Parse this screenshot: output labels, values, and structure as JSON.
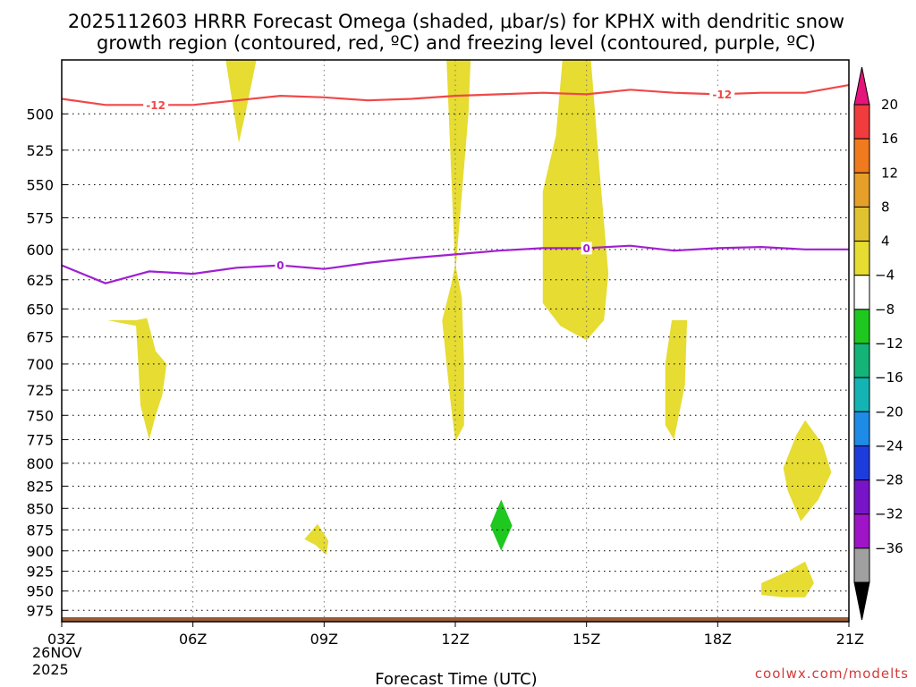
{
  "title_line1": "2025112603 HRRR Forecast Omega (shaded, μbar/s) for KPHX with dendritic snow",
  "title_line2": "growth region (contoured, red, ºC) and freezing level (contoured, purple, ºC)",
  "credit": "coolwx.com/modelts",
  "chart_data": {
    "type": "heatmap",
    "title": "2025112603 HRRR Forecast Omega (shaded, μbar/s) for KPHX with dendritic snow growth region (contoured, red, ºC) and freezing level (contoured, purple, ºC)",
    "xlabel": "Forecast Time (UTC)",
    "ylabel": "",
    "xlim": [
      3,
      21
    ],
    "ylim": [
      990,
      465
    ],
    "x_ticks": [
      {
        "x": 3,
        "label": "03Z"
      },
      {
        "x": 6,
        "label": "06Z"
      },
      {
        "x": 9,
        "label": "09Z"
      },
      {
        "x": 12,
        "label": "12Z"
      },
      {
        "x": 15,
        "label": "15Z"
      },
      {
        "x": 18,
        "label": "18Z"
      },
      {
        "x": 21,
        "label": "21Z"
      }
    ],
    "x_date_line1": "26NOV",
    "x_date_line2": "2025",
    "y_ticks": [
      500,
      525,
      550,
      575,
      600,
      625,
      650,
      675,
      700,
      725,
      750,
      775,
      800,
      825,
      850,
      875,
      900,
      925,
      950,
      975
    ],
    "grid": true,
    "colorbar": {
      "boundaries": [
        20,
        16,
        12,
        8,
        4,
        -4,
        -8,
        -12,
        -16,
        -20,
        -24,
        -28,
        -32,
        -36
      ],
      "colors": [
        "#f03c3c",
        "#f07a1e",
        "#e6a02a",
        "#e0c330",
        "#e6dc32",
        "#ffffff",
        "#1ec81e",
        "#14b478",
        "#14b4b4",
        "#1e8ce6",
        "#1e3cdc",
        "#7814c8",
        "#a014c8",
        "#a0a0a0"
      ],
      "top_extend_color": "#e6147a",
      "bottom_extend_color": "#000000"
    },
    "shaded_regions": [
      {
        "value_range": [
          4,
          8
        ],
        "color": "#e6dc32",
        "points": [
          [
            6.75,
            465
          ],
          [
            7.05,
            520
          ],
          [
            7.2,
            500
          ],
          [
            7.45,
            465
          ]
        ]
      },
      {
        "value_range": [
          4,
          8
        ],
        "color": "#e6dc32",
        "points": [
          [
            4.05,
            660
          ],
          [
            4.7,
            660
          ],
          [
            4.95,
            658
          ],
          [
            5.15,
            688
          ],
          [
            5.4,
            700
          ],
          [
            5.3,
            730
          ],
          [
            5.15,
            750
          ],
          [
            5.0,
            775
          ],
          [
            4.8,
            740
          ],
          [
            4.75,
            700
          ],
          [
            4.7,
            665
          ]
        ]
      },
      {
        "value_range": [
          4,
          8
        ],
        "color": "#e6dc32",
        "points": [
          [
            11.8,
            465
          ],
          [
            12.35,
            465
          ],
          [
            12.3,
            500
          ],
          [
            12.0,
            620
          ],
          [
            11.8,
            465
          ]
        ]
      },
      {
        "value_range": [
          4,
          8
        ],
        "color": "#e6dc32",
        "points": [
          [
            12.0,
            612
          ],
          [
            12.15,
            640
          ],
          [
            12.2,
            700
          ],
          [
            12.2,
            760
          ],
          [
            12.0,
            777
          ],
          [
            11.9,
            740
          ],
          [
            11.8,
            700
          ],
          [
            11.7,
            660
          ],
          [
            11.9,
            630
          ]
        ]
      },
      {
        "value_range": [
          4,
          8
        ],
        "color": "#e6dc32",
        "points": [
          [
            14.45,
            465
          ],
          [
            15.1,
            465
          ],
          [
            15.3,
            540
          ],
          [
            15.5,
            620
          ],
          [
            15.4,
            660
          ],
          [
            15.0,
            678
          ],
          [
            14.4,
            665
          ],
          [
            14.0,
            645
          ],
          [
            14.0,
            555
          ],
          [
            14.3,
            515
          ]
        ]
      },
      {
        "value_range": [
          4,
          8
        ],
        "color": "#e6dc32",
        "points": [
          [
            16.95,
            660
          ],
          [
            17.3,
            660
          ],
          [
            17.25,
            720
          ],
          [
            17.0,
            775
          ],
          [
            16.8,
            760
          ],
          [
            16.8,
            700
          ]
        ]
      },
      {
        "value_range": [
          4,
          8
        ],
        "color": "#e6dc32",
        "points": [
          [
            20.0,
            755
          ],
          [
            20.4,
            780
          ],
          [
            20.6,
            810
          ],
          [
            20.3,
            840
          ],
          [
            19.9,
            865
          ],
          [
            19.6,
            830
          ],
          [
            19.5,
            805
          ],
          [
            19.8,
            770
          ]
        ]
      },
      {
        "value_range": [
          4,
          8
        ],
        "color": "#e6dc32",
        "points": [
          [
            19.0,
            940
          ],
          [
            19.6,
            925
          ],
          [
            20.0,
            913
          ],
          [
            20.2,
            940
          ],
          [
            20.0,
            958
          ],
          [
            19.5,
            958
          ],
          [
            19.0,
            955
          ]
        ]
      },
      {
        "value_range": [
          4,
          8
        ],
        "color": "#e6dc32",
        "points": [
          [
            8.55,
            886
          ],
          [
            8.85,
            868
          ],
          [
            9.1,
            888
          ],
          [
            9.05,
            905
          ],
          [
            8.8,
            893
          ]
        ]
      },
      {
        "value_range": [
          -8,
          -4
        ],
        "color": "#1ec81e",
        "points": [
          [
            13.05,
            840
          ],
          [
            13.3,
            870
          ],
          [
            13.05,
            900
          ],
          [
            12.8,
            870
          ]
        ]
      }
    ],
    "series": [
      {
        "label": "-12",
        "color": "#f04848",
        "x": [
          3,
          4,
          5,
          6,
          7,
          8,
          9,
          10,
          11,
          12,
          13,
          14,
          15,
          16,
          17,
          18,
          19,
          20,
          21
        ],
        "y": [
          490,
          494,
          494,
          494,
          491,
          488,
          489,
          491,
          490,
          488,
          487,
          486,
          487,
          484,
          486,
          487,
          486,
          486,
          481
        ]
      },
      {
        "label": "0",
        "color": "#a020d0",
        "x": [
          3,
          4,
          5,
          6,
          7,
          8,
          9,
          10,
          11,
          12,
          13,
          14,
          15,
          16,
          17,
          18,
          19,
          20,
          21
        ],
        "y": [
          613,
          628,
          618,
          620,
          615,
          613,
          616,
          611,
          607,
          604,
          601,
          599,
          599,
          597,
          601,
          599,
          598,
          600,
          600
        ]
      }
    ],
    "contour_labels": [
      {
        "text": "-12",
        "x": 5.15,
        "y": 494,
        "color": "#f04848"
      },
      {
        "text": "-12",
        "x": 18.1,
        "y": 487,
        "color": "#f04848"
      },
      {
        "text": "0",
        "x": 8.0,
        "y": 613,
        "color": "#a020d0"
      },
      {
        "text": "0",
        "x": 15.0,
        "y": 599,
        "color": "#a020d0"
      }
    ],
    "terrain": {
      "color": "#9a5a34",
      "top_pressure": 984,
      "bottom_pressure": 990
    }
  }
}
